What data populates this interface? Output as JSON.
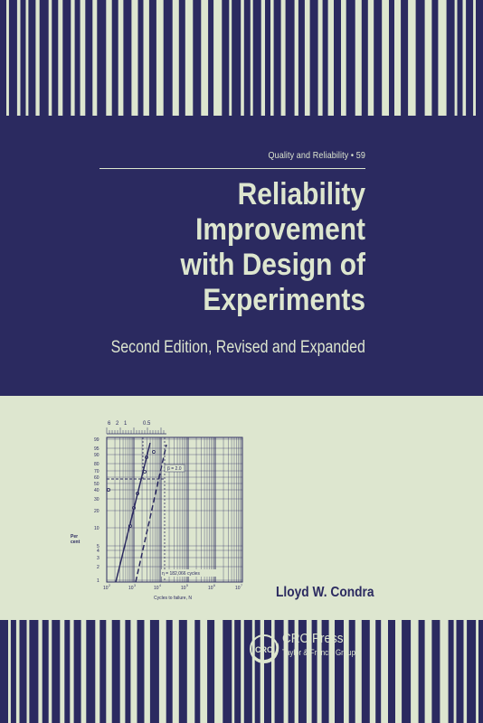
{
  "series": {
    "label": "Quality and Reliability • 59"
  },
  "title": {
    "line1": "Reliability",
    "line2": "Improvement",
    "line3": "with Design of",
    "line4": "Experiments"
  },
  "subtitle": "Second Edition, Revised and Expanded",
  "author": "Lloyd W. Condra",
  "publisher": {
    "name": "CRC Press",
    "group": "Taylor & Francis Group",
    "badge_text": "CRC"
  },
  "figure": {
    "top_scale_labels": [
      "6",
      "2",
      "1",
      "0.5"
    ],
    "y_ticks": [
      "99",
      "95",
      "90",
      "80",
      "70",
      "60",
      "50",
      "40",
      "30",
      "20",
      "10",
      "5",
      "4",
      "3",
      "2",
      "1"
    ],
    "y_axis_label_1": "Per",
    "y_axis_label_2": "cent",
    "x_ticks": [
      "10",
      "10",
      "10",
      "10",
      "10",
      "10"
    ],
    "x_exponents": [
      "2",
      "3",
      "4",
      "5",
      "6",
      "7"
    ],
    "x_axis_label": "Cycles to failure, N",
    "beta_label": "β = 2.0",
    "eta_label": "η = 182,066 cycles"
  },
  "colors": {
    "navy": "#2b2a60",
    "sage": "#dde6cf"
  }
}
